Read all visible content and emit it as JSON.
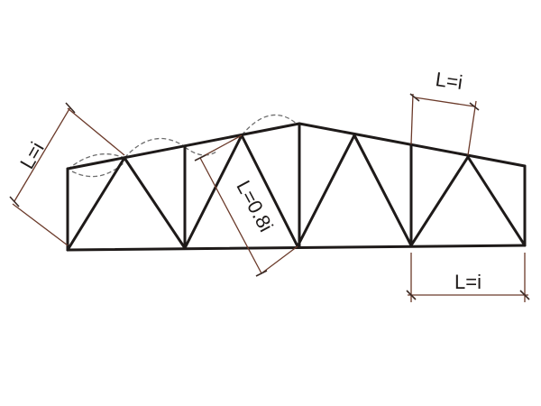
{
  "labels": {
    "top_chord_left": "L=i",
    "top_chord_right": "L=i",
    "diagonal": "L=0.8i",
    "bottom_chord": "L=i"
  },
  "colors": {
    "members": "#1e1a19",
    "dimension_lines": "#6b3a2a",
    "buckling_curves": "#6d6d6d"
  }
}
